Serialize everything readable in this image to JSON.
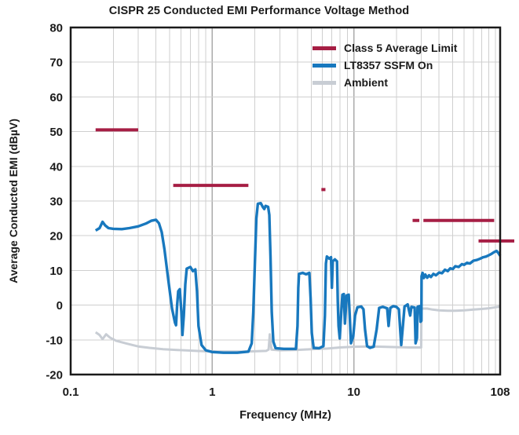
{
  "chart_data": {
    "type": "line",
    "title": "CISPR 25 Conducted EMI Performance Voltage Method",
    "xlabel": "Frequency (MHz)",
    "ylabel": "Average Conducted EMI (dBµV)",
    "x_scale": "log",
    "xlim": [
      0.1,
      108
    ],
    "ylim": [
      -20,
      80
    ],
    "x_ticks": [
      {
        "value": 0.1,
        "label": "0.1"
      },
      {
        "value": 1,
        "label": "1"
      },
      {
        "value": 10,
        "label": "10"
      },
      {
        "value": 108,
        "label": "108"
      }
    ],
    "y_ticks": [
      80,
      70,
      60,
      50,
      40,
      30,
      20,
      10,
      0,
      -10,
      -20
    ],
    "grid": true,
    "legend_position": "top-right-inside",
    "colors": {
      "limit_red": "#A61E44",
      "lt8357_blue": "#1878BE",
      "ambient_gray": "#C8CDD4",
      "grid_minor": "#CFCFCF",
      "grid_major": "#ABABAB",
      "frame": "#1A1A1A"
    },
    "series": [
      {
        "name": "Class 5 Average Limit",
        "type": "segments",
        "color": "#A61E44",
        "stroke_width": 4,
        "segments": [
          {
            "f_start": 0.15,
            "f_end": 0.3,
            "level_dbuv": 50.5
          },
          {
            "f_start": 0.53,
            "f_end": 1.8,
            "level_dbuv": 34.5
          },
          {
            "f_start": 5.9,
            "f_end": 6.3,
            "level_dbuv": 33.3
          },
          {
            "f_start": 26,
            "f_end": 29,
            "level_dbuv": 24.4
          },
          {
            "f_start": 31,
            "f_end": 98,
            "level_dbuv": 24.4
          },
          {
            "f_start": 76,
            "f_end": 108,
            "level_dbuv": 18.5,
            "extends_past_axis": true
          }
        ]
      },
      {
        "name": "LT8357 SSFM On",
        "type": "line",
        "color": "#1878BE",
        "stroke_width": 3.4,
        "points": [
          [
            0.15,
            21.5
          ],
          [
            0.16,
            22.2
          ],
          [
            0.168,
            24.0
          ],
          [
            0.175,
            23.0
          ],
          [
            0.185,
            22.2
          ],
          [
            0.2,
            22.0
          ],
          [
            0.23,
            21.9
          ],
          [
            0.26,
            22.2
          ],
          [
            0.3,
            22.7
          ],
          [
            0.34,
            23.5
          ],
          [
            0.37,
            24.3
          ],
          [
            0.4,
            24.6
          ],
          [
            0.42,
            23.6
          ],
          [
            0.44,
            21.0
          ],
          [
            0.46,
            16.0
          ],
          [
            0.49,
            7.0
          ],
          [
            0.52,
            -1.0
          ],
          [
            0.545,
            -5.0
          ],
          [
            0.555,
            -5.8
          ],
          [
            0.565,
            0.0
          ],
          [
            0.575,
            4.0
          ],
          [
            0.59,
            4.6
          ],
          [
            0.605,
            -2.0
          ],
          [
            0.615,
            -8.6
          ],
          [
            0.63,
            -3.0
          ],
          [
            0.645,
            6.0
          ],
          [
            0.66,
            10.5
          ],
          [
            0.7,
            11.0
          ],
          [
            0.73,
            9.8
          ],
          [
            0.76,
            10.3
          ],
          [
            0.78,
            4.0
          ],
          [
            0.8,
            -6.0
          ],
          [
            0.84,
            -11.5
          ],
          [
            0.9,
            -13.0
          ],
          [
            1.0,
            -13.5
          ],
          [
            1.2,
            -13.7
          ],
          [
            1.5,
            -13.7
          ],
          [
            1.8,
            -13.4
          ],
          [
            1.9,
            -11.0
          ],
          [
            1.95,
            -2.0
          ],
          [
            2.0,
            12.0
          ],
          [
            2.05,
            25.0
          ],
          [
            2.1,
            29.2
          ],
          [
            2.2,
            29.4
          ],
          [
            2.28,
            28.2
          ],
          [
            2.33,
            27.7
          ],
          [
            2.38,
            28.6
          ],
          [
            2.48,
            28.3
          ],
          [
            2.53,
            26.0
          ],
          [
            2.58,
            14.0
          ],
          [
            2.63,
            -2.0
          ],
          [
            2.7,
            -10.5
          ],
          [
            2.8,
            -12.4
          ],
          [
            3.2,
            -12.6
          ],
          [
            3.9,
            -12.6
          ],
          [
            4.0,
            -6.0
          ],
          [
            4.05,
            5.0
          ],
          [
            4.1,
            9.0
          ],
          [
            4.35,
            9.3
          ],
          [
            4.6,
            8.9
          ],
          [
            4.85,
            9.3
          ],
          [
            4.95,
            2.0
          ],
          [
            5.05,
            -8.0
          ],
          [
            5.2,
            -12.3
          ],
          [
            5.7,
            -12.4
          ],
          [
            6.1,
            -11.8
          ],
          [
            6.25,
            -3.0
          ],
          [
            6.35,
            12.0
          ],
          [
            6.45,
            14.0
          ],
          [
            6.7,
            13.4
          ],
          [
            6.9,
            13.8
          ],
          [
            7.0,
            5.0
          ],
          [
            7.1,
            12.6
          ],
          [
            7.35,
            13.2
          ],
          [
            7.6,
            12.6
          ],
          [
            7.7,
            1.0
          ],
          [
            7.8,
            -6.0
          ],
          [
            7.95,
            -9.6
          ],
          [
            8.1,
            -4.0
          ],
          [
            8.3,
            3.0
          ],
          [
            8.5,
            3.2
          ],
          [
            8.65,
            -5.3
          ],
          [
            8.9,
            2.8
          ],
          [
            9.2,
            3.0
          ],
          [
            9.35,
            -3.0
          ],
          [
            9.55,
            -11.0
          ],
          [
            9.9,
            -9.0
          ],
          [
            10.2,
            -3.0
          ],
          [
            10.6,
            -0.6
          ],
          [
            11.3,
            -0.4
          ],
          [
            11.7,
            -1.2
          ],
          [
            12.0,
            -7.0
          ],
          [
            12.4,
            -11.8
          ],
          [
            13.0,
            -12.3
          ],
          [
            13.8,
            -12.0
          ],
          [
            14.5,
            -7.0
          ],
          [
            15.1,
            -0.8
          ],
          [
            16.0,
            -0.5
          ],
          [
            17.2,
            -0.9
          ],
          [
            17.6,
            -6.0
          ],
          [
            18.1,
            -0.8
          ],
          [
            19.0,
            -0.3
          ],
          [
            20.0,
            -0.5
          ],
          [
            20.8,
            -1.2
          ],
          [
            21.6,
            -11.5
          ],
          [
            22.3,
            -5.0
          ],
          [
            22.8,
            -0.4
          ],
          [
            24.0,
            0.2
          ],
          [
            25.0,
            -3.0
          ],
          [
            25.5,
            -0.5
          ],
          [
            26.9,
            -0.7
          ],
          [
            27.3,
            -11.0
          ],
          [
            27.9,
            -9.5
          ],
          [
            28.2,
            -0.5
          ],
          [
            29.2,
            -0.3
          ],
          [
            29.6,
            -4.8
          ],
          [
            30.0,
            -4.5
          ],
          [
            30.1,
            8.3
          ],
          [
            30.6,
            9.3
          ],
          [
            31.2,
            7.8
          ],
          [
            32,
            8.8
          ],
          [
            33,
            7.9
          ],
          [
            34,
            8.6
          ],
          [
            35,
            8.1
          ],
          [
            36.5,
            9.0
          ],
          [
            38,
            8.6
          ],
          [
            40,
            9.4
          ],
          [
            42,
            9.2
          ],
          [
            44,
            10.2
          ],
          [
            46,
            9.8
          ],
          [
            48,
            10.6
          ],
          [
            50,
            10.4
          ],
          [
            52,
            11.2
          ],
          [
            55,
            11.0
          ],
          [
            58,
            11.8
          ],
          [
            60,
            11.6
          ],
          [
            63,
            12.2
          ],
          [
            66,
            12.0
          ],
          [
            70,
            12.8
          ],
          [
            74,
            13.0
          ],
          [
            78,
            13.4
          ],
          [
            82,
            13.8
          ],
          [
            86,
            14.0
          ],
          [
            90,
            14.4
          ],
          [
            94,
            14.8
          ],
          [
            98,
            15.3
          ],
          [
            102,
            15.6
          ],
          [
            105,
            15.0
          ],
          [
            108,
            14.2
          ]
        ]
      },
      {
        "name": "Ambient",
        "type": "line",
        "color": "#C8CDD4",
        "stroke_width": 3,
        "points": [
          [
            0.15,
            -7.8
          ],
          [
            0.16,
            -8.6
          ],
          [
            0.168,
            -9.8
          ],
          [
            0.178,
            -8.4
          ],
          [
            0.19,
            -9.4
          ],
          [
            0.21,
            -10.3
          ],
          [
            0.25,
            -11.1
          ],
          [
            0.3,
            -11.9
          ],
          [
            0.36,
            -12.3
          ],
          [
            0.45,
            -12.7
          ],
          [
            0.55,
            -12.9
          ],
          [
            0.7,
            -13.1
          ],
          [
            0.9,
            -13.3
          ],
          [
            1.2,
            -13.4
          ],
          [
            1.6,
            -13.4
          ],
          [
            2.0,
            -13.3
          ],
          [
            2.4,
            -13.2
          ],
          [
            2.5,
            -12.8
          ],
          [
            2.55,
            -8.4
          ],
          [
            2.62,
            -12.8
          ],
          [
            3.0,
            -13.0
          ],
          [
            4.0,
            -12.9
          ],
          [
            5.0,
            -12.7
          ],
          [
            6.5,
            -12.5
          ],
          [
            8.0,
            -12.2
          ],
          [
            10.0,
            -12.0
          ],
          [
            13.0,
            -11.9
          ],
          [
            16.0,
            -12.0
          ],
          [
            20.0,
            -12.1
          ],
          [
            25.0,
            -12.2
          ],
          [
            29.9,
            -12.2
          ],
          [
            30.0,
            -1.0
          ],
          [
            33.0,
            -1.0
          ],
          [
            36.0,
            -1.3
          ],
          [
            40.0,
            -1.5
          ],
          [
            46.0,
            -1.6
          ],
          [
            52.0,
            -1.6
          ],
          [
            60.0,
            -1.5
          ],
          [
            70.0,
            -1.3
          ],
          [
            80.0,
            -1.1
          ],
          [
            90.0,
            -0.9
          ],
          [
            100.0,
            -0.6
          ],
          [
            108.0,
            -0.4
          ]
        ]
      }
    ]
  }
}
